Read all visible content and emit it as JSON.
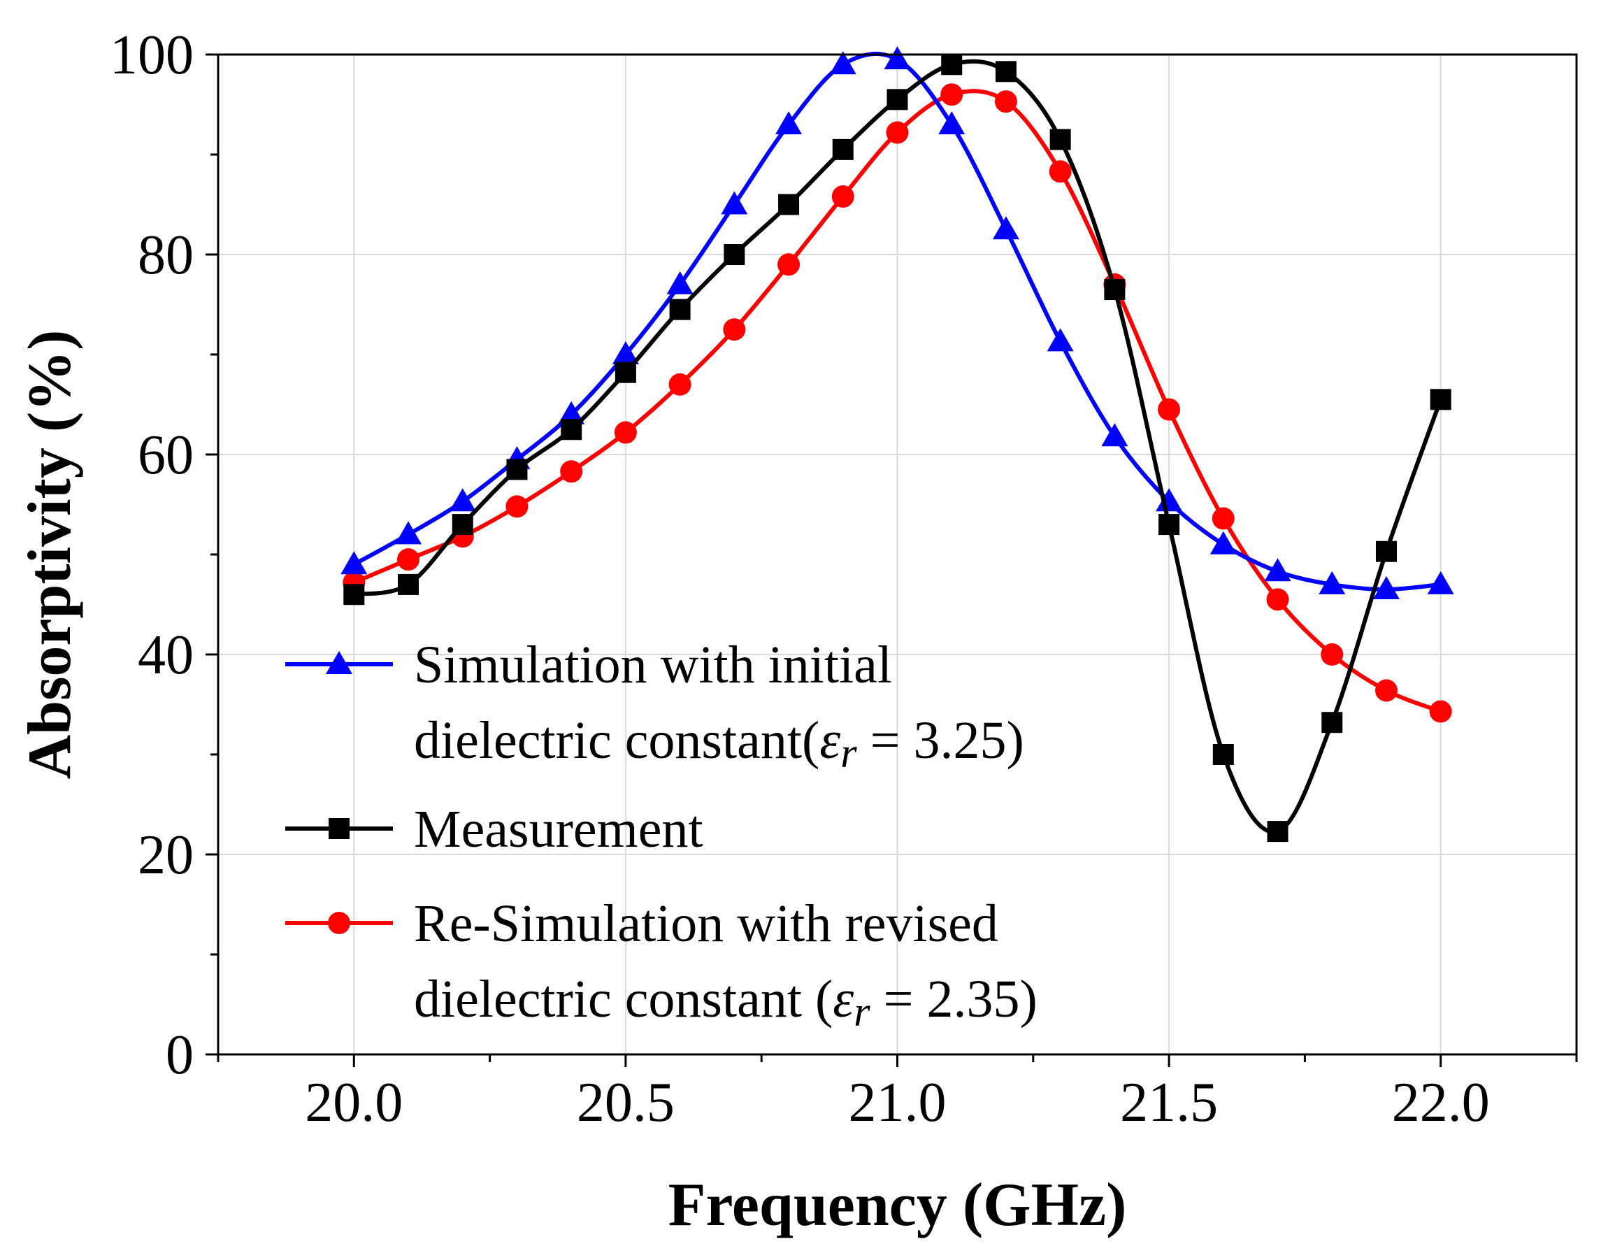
{
  "chart_data": {
    "type": "line",
    "xlabel": "Frequency (GHz)",
    "ylabel": "Absorptivity (%)",
    "xlim": [
      19.75,
      22.25
    ],
    "ylim": [
      0,
      100
    ],
    "x_ticks": [
      "20.0",
      "20.5",
      "21.0",
      "21.5",
      "22.0"
    ],
    "y_ticks": [
      "0",
      "20",
      "40",
      "60",
      "80",
      "100"
    ],
    "x_tick_values": [
      20.0,
      20.5,
      21.0,
      21.5,
      22.0
    ],
    "y_tick_values": [
      0,
      20,
      40,
      60,
      80,
      100
    ],
    "grid": true,
    "legend_position": "bottom-left",
    "x": [
      20.0,
      20.1,
      20.2,
      20.3,
      20.4,
      20.5,
      20.6,
      20.7,
      20.8,
      20.9,
      21.0,
      21.1,
      21.2,
      21.3,
      21.4,
      21.5,
      21.6,
      21.7,
      21.8,
      21.9,
      22.0
    ],
    "series": [
      {
        "legend_lines": [
          "Simulation with initial",
          "dielectric constant(",
          "ε",
          "r",
          " = 3.25)"
        ],
        "color": "#0000ff",
        "marker": "triangle",
        "values": [
          49,
          52,
          55.3,
          59.5,
          64,
          70,
          77,
          85,
          93,
          99,
          99.5,
          93,
          82.5,
          71.3,
          61.8,
          55.3,
          51,
          48.3,
          47,
          46.5,
          47
        ]
      },
      {
        "legend_lines": [
          "Measurement"
        ],
        "color": "#000000",
        "marker": "square",
        "values": [
          46,
          47,
          53,
          58.5,
          62.5,
          68.2,
          74.5,
          80,
          85,
          90.5,
          95.5,
          99,
          98.3,
          91.5,
          76.5,
          53,
          30,
          22.3,
          33.2,
          50.3,
          65.5
        ]
      },
      {
        "legend_lines": [
          "Re-Simulation with revised",
          "dielectric constant (",
          "ε",
          "r",
          " = 2.35)"
        ],
        "color": "#ff0000",
        "marker": "circle",
        "values": [
          47.2,
          49.5,
          51.8,
          54.8,
          58.3,
          62.2,
          67,
          72.5,
          79,
          85.8,
          92.2,
          96,
          95.3,
          88.3,
          77,
          64.5,
          53.6,
          45.5,
          40,
          36.4,
          34.3
        ]
      }
    ]
  }
}
